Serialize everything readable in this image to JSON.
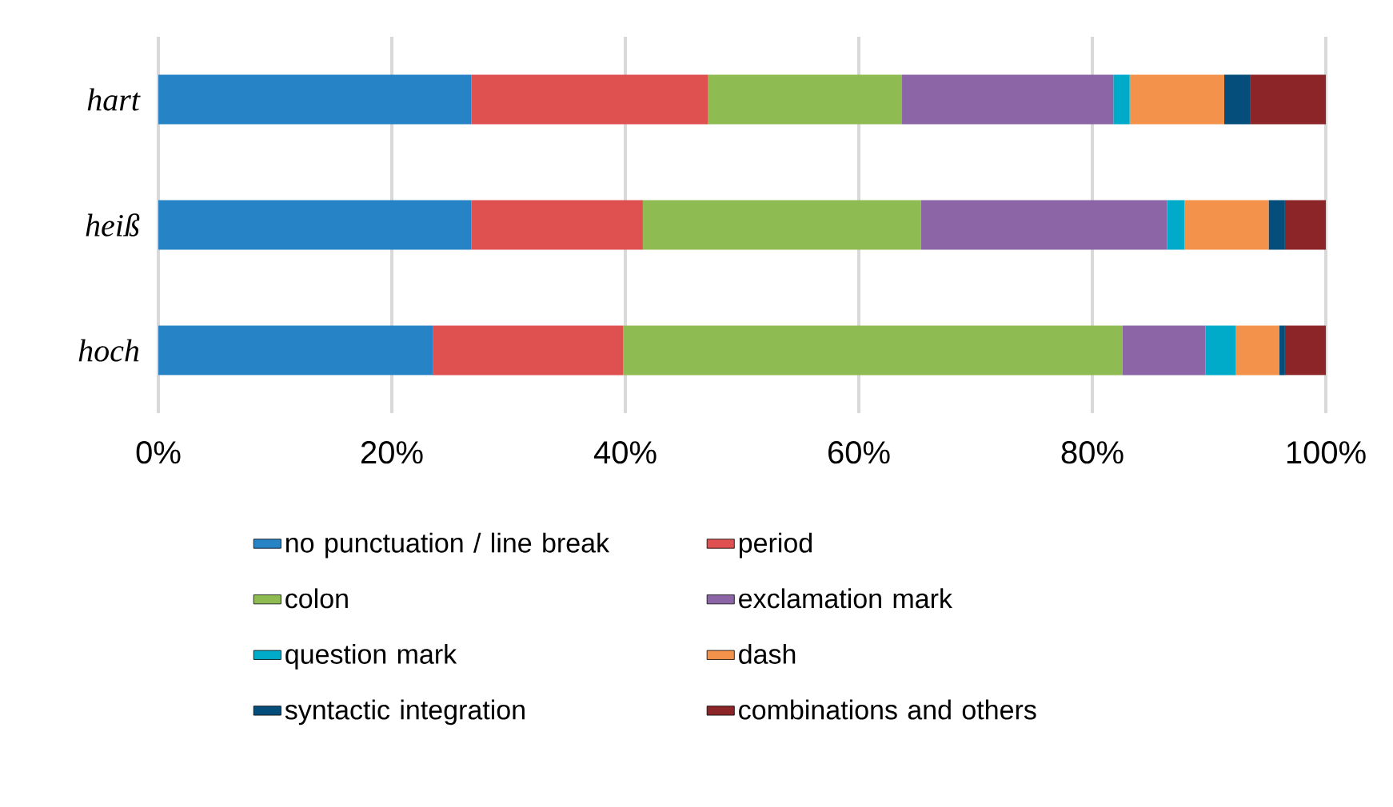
{
  "chart_data": {
    "type": "bar",
    "orientation": "horizontal",
    "stacked": true,
    "categories": [
      "hart",
      "heiß",
      "hoch"
    ],
    "series": [
      {
        "name": "no punctuation / line break",
        "color": "#2683c6",
        "values": [
          26.8,
          26.8,
          23.5
        ]
      },
      {
        "name": "period",
        "color": "#df5050",
        "values": [
          20.3,
          14.7,
          16.3
        ]
      },
      {
        "name": "colon",
        "color": "#8fbc52",
        "values": [
          16.6,
          23.8,
          42.8
        ]
      },
      {
        "name": "exclamation mark",
        "color": "#8c65a6",
        "values": [
          18.1,
          21.1,
          7.1
        ]
      },
      {
        "name": "question mark",
        "color": "#00abc9",
        "values": [
          1.4,
          1.5,
          2.6
        ]
      },
      {
        "name": "dash",
        "color": "#f3924b",
        "values": [
          8.1,
          7.2,
          3.7
        ]
      },
      {
        "name": "syntactic integration",
        "color": "#054d7a",
        "values": [
          2.2,
          1.4,
          0.5
        ]
      },
      {
        "name": "combinations and others",
        "color": "#8b2527",
        "values": [
          6.5,
          3.5,
          3.5
        ]
      }
    ],
    "xlim": [
      0,
      100
    ],
    "xticks": [
      {
        "value": 0,
        "label": "0%"
      },
      {
        "value": 20,
        "label": "20%"
      },
      {
        "value": 40,
        "label": "40%"
      },
      {
        "value": 60,
        "label": "60%"
      },
      {
        "value": 80,
        "label": "80%"
      },
      {
        "value": 100,
        "label": "100%"
      }
    ],
    "grid": "x",
    "legend": "bottom"
  }
}
